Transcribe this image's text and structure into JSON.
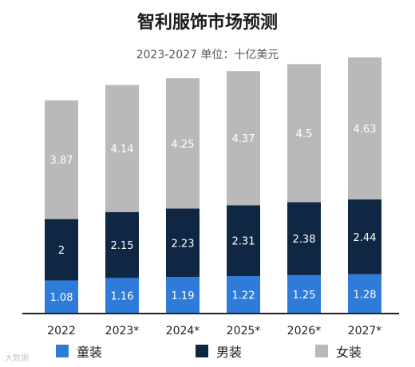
{
  "chart_data": {
    "type": "bar",
    "stacked": true,
    "title": "智利服饰市场预测",
    "subtitle": "2023-2027 单位：十亿美元",
    "categories": [
      "2022",
      "2023*",
      "2024*",
      "2025*",
      "2026*",
      "2027*"
    ],
    "series": [
      {
        "name": "童装",
        "color": "#2f7bd9",
        "label_color": "#ffffff",
        "values": [
          1.08,
          1.16,
          1.19,
          1.22,
          1.25,
          1.28
        ]
      },
      {
        "name": "男装",
        "color": "#0f2742",
        "label_color": "#ffffff",
        "values": [
          2,
          2.15,
          2.23,
          2.31,
          2.38,
          2.44
        ]
      },
      {
        "name": "女装",
        "color": "#b9b9b9",
        "label_color": "#ffffff",
        "values": [
          3.87,
          4.14,
          4.25,
          4.37,
          4.5,
          4.63
        ]
      }
    ],
    "ylim": [
      0,
      8.4
    ],
    "grid": false,
    "legend_position": "bottom"
  },
  "watermark": "大数据"
}
